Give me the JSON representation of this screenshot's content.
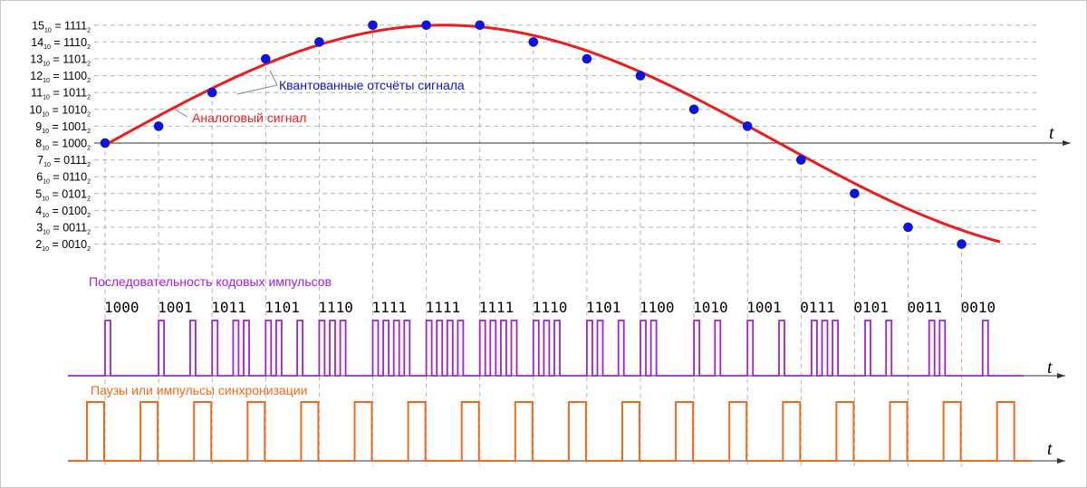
{
  "colors": {
    "analog": "#ee1c1c",
    "sample": "#0b14e0",
    "code_pulse": "#a020e0",
    "sync_pulse": "#f26a1c",
    "grid": "#b4b4b4",
    "axis": "#333333"
  },
  "levels": [
    {
      "value": 15,
      "dec": "15",
      "bin": "1111"
    },
    {
      "value": 14,
      "dec": "14",
      "bin": "1110"
    },
    {
      "value": 13,
      "dec": "13",
      "bin": "1101"
    },
    {
      "value": 12,
      "dec": "12",
      "bin": "1100"
    },
    {
      "value": 11,
      "dec": "11",
      "bin": "1011"
    },
    {
      "value": 10,
      "dec": "10",
      "bin": "1010"
    },
    {
      "value": 9,
      "dec": "9",
      "bin": "1001"
    },
    {
      "value": 8,
      "dec": "8",
      "bin": "1000"
    },
    {
      "value": 7,
      "dec": "7",
      "bin": "0111"
    },
    {
      "value": 6,
      "dec": "6",
      "bin": "0110"
    },
    {
      "value": 5,
      "dec": "5",
      "bin": "0101"
    },
    {
      "value": 4,
      "dec": "4",
      "bin": "0100"
    },
    {
      "value": 3,
      "dec": "3",
      "bin": "0011"
    },
    {
      "value": 2,
      "dec": "2",
      "bin": "0010"
    }
  ],
  "level_label_parts": {
    "dec_sub": "10",
    "eq": " = ",
    "bin_sub": "2"
  },
  "samples": [
    8,
    9,
    11,
    13,
    14,
    15,
    15,
    15,
    14,
    13,
    12,
    10,
    9,
    7,
    5,
    3,
    2
  ],
  "codes": [
    "1000",
    "1001",
    "1011",
    "1101",
    "1110",
    "1111",
    "1111",
    "1111",
    "1110",
    "1101",
    "1100",
    "1010",
    "1001",
    "0111",
    "0101",
    "0011",
    "0010"
  ],
  "labels": {
    "analog_signal": "Аналоговый сигнал",
    "quantized_samples": "Квантованные отсчёты сигнала",
    "code_sequence": "Последовательность кодовых импульсов",
    "sync_pulses": "Паузы или импульсы синхронизации",
    "time_axis": "t"
  }
}
